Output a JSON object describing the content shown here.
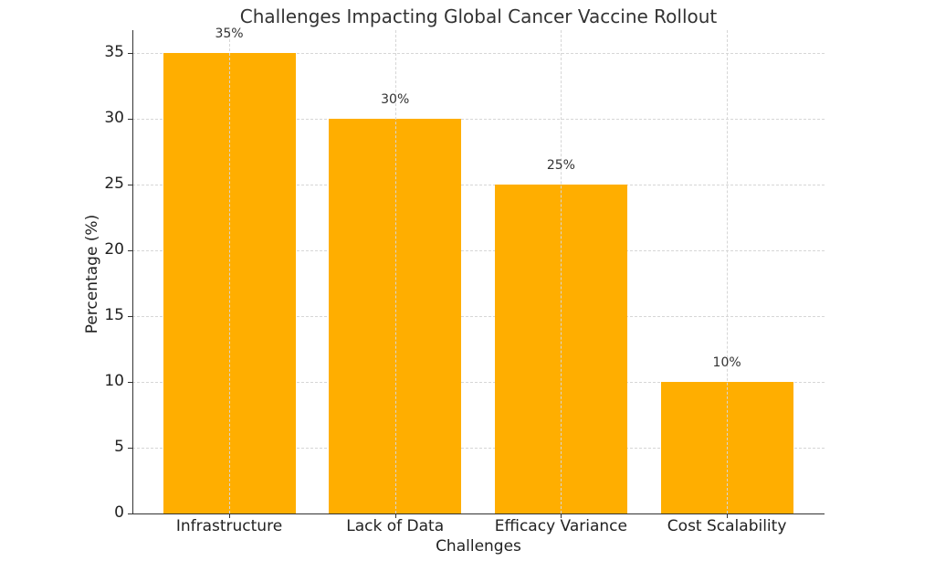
{
  "chart_data": {
    "type": "bar",
    "title": "Challenges Impacting Global Cancer Vaccine Rollout",
    "xlabel": "Challenges",
    "ylabel": "Percentage (%)",
    "categories": [
      "Infrastructure",
      "Lack of Data",
      "Efficacy Variance",
      "Cost Scalability"
    ],
    "values": [
      35,
      30,
      25,
      10
    ],
    "data_labels": [
      "35%",
      "30%",
      "25%",
      "10%"
    ],
    "ylim": [
      0,
      36.75
    ],
    "yticks": [
      0,
      5,
      10,
      15,
      20,
      25,
      30,
      35
    ],
    "grid": true,
    "legend": null,
    "colors": {
      "bar": "#FFAE00",
      "grid": "#D6D6D6",
      "axis": "#333333",
      "text": "#333333"
    }
  }
}
